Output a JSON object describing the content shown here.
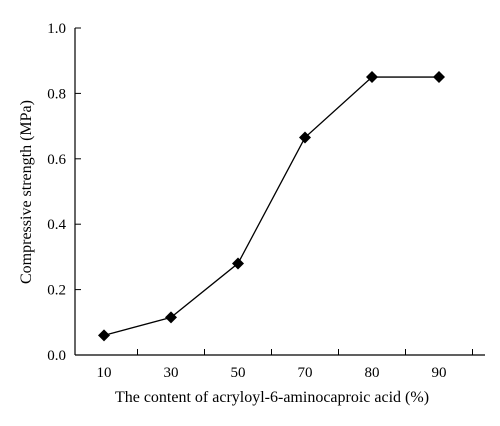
{
  "chart_data": {
    "type": "line",
    "xlabel": "The content of acryloyl-6-aminocaproic acid (%)",
    "ylabel": "Compressive strength (MPa)",
    "categories": [
      "10",
      "30",
      "50",
      "70",
      "80",
      "90"
    ],
    "series": [
      {
        "values": [
          0.06,
          0.115,
          0.28,
          0.665,
          0.85,
          0.85
        ]
      }
    ],
    "ylim": [
      0,
      1.0
    ],
    "yticks": [
      "0.0",
      "0.2",
      "0.4",
      "0.6",
      "0.8",
      "1.0"
    ],
    "grid": false,
    "marker": "diamond",
    "line_color": "#000000"
  }
}
